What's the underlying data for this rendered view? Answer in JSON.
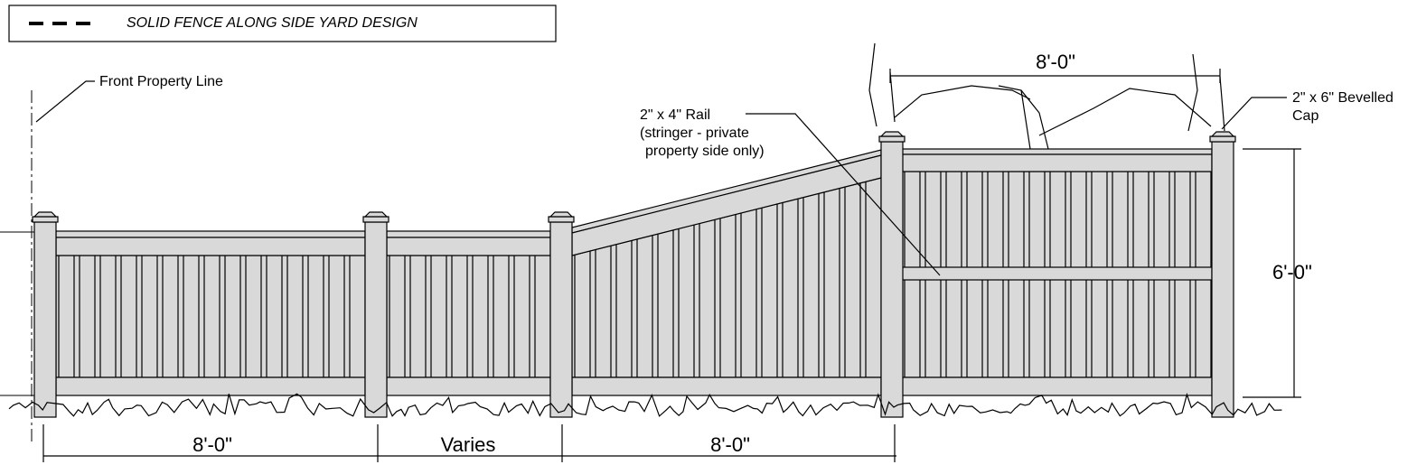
{
  "legend": {
    "label": "SOLID FENCE ALONG SIDE YARD DESIGN"
  },
  "callouts": [
    {
      "lines": [
        "Front Property Line"
      ]
    },
    {
      "lines": [
        "2\" x 4\"  Rail",
        "(stringer - private",
        "property side only)"
      ]
    },
    {
      "lines": [
        "2\" x 6\"  Bevelled",
        "Cap"
      ]
    }
  ],
  "dimensions": {
    "top": "8'-0\"",
    "height": "6'-0\"",
    "bottom": [
      "8'-0\"",
      "Varies",
      "8'-0\""
    ]
  }
}
